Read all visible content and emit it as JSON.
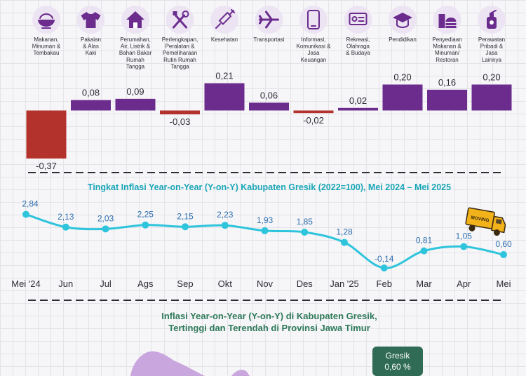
{
  "colors": {
    "purple": "#6b2c8e",
    "red": "#b3322c",
    "teal": "#2ec4dc",
    "title_teal": "#1aa6b8",
    "green_title": "#2f7a5a",
    "text_dark": "#2d2d35",
    "value_blue": "#2f6fb0",
    "icon_purple": "#6b2c8e",
    "icon_bg": "#ece4f2",
    "map_purple": "#c9a6dd",
    "badge_green": "#2f6b55"
  },
  "chart_data": [
    {
      "type": "bar",
      "categories": [
        "Makanan, Minuman & Tembakau",
        "Pakaian & Alas Kaki",
        "Perumahan, Air, Listrik & Bahan Bakar Rumah Tangga",
        "Perlengkapan, Peralatan & Pemeliharaan Rutin Rumah Tangga",
        "Kesehatan",
        "Transportasi",
        "Informasi, Komunikasi & Jasa Keuangan",
        "Rekreasi, Olahraga & Budaya",
        "Pendidikan",
        "Penyediaan Makanan & Minuman/ Restoran",
        "Perawatan Pribadi & Jasa Lainnya"
      ],
      "category_lines": [
        [
          "Makanan,",
          "Minuman &",
          "Tembakau"
        ],
        [
          "Pakaian",
          "& Alas",
          "Kaki"
        ],
        [
          "Perumahan,",
          "Air, Listrik &",
          "Bahan Bakar",
          "Rumah",
          "Tangga"
        ],
        [
          "Perlengkapan,",
          "Peralatan &",
          "Pemeliharaan",
          "Rutin Rumah",
          "Tangga"
        ],
        [
          "Kesehatan"
        ],
        [
          "Transportasi"
        ],
        [
          "Informasi,",
          "Komunikasi &",
          "Jasa",
          "Keuangan"
        ],
        [
          "Rekreasi,",
          "Olahraga",
          "& Budaya"
        ],
        [
          "Pendidikan"
        ],
        [
          "Penyediaan",
          "Makanan &",
          "Minuman/",
          "Restoran"
        ],
        [
          "Perawatan",
          "Pribadi &",
          "Jasa",
          "Lainnya"
        ]
      ],
      "icons": [
        "food-bowl-icon",
        "tshirt-icon",
        "house-icon",
        "tools-icon",
        "syringe-icon",
        "airplane-icon",
        "smartphone-icon",
        "ticket-icon",
        "graduation-cap-icon",
        "fastfood-icon",
        "lotion-bottle-icon"
      ],
      "values": [
        -0.37,
        0.08,
        0.09,
        -0.03,
        0.21,
        0.06,
        -0.02,
        0.02,
        0.2,
        0.16,
        0.2
      ],
      "labels": [
        "-0,37",
        "0,08",
        "0,09",
        "-0,03",
        "0,21",
        "0,06",
        "-0,02",
        "0,02",
        "0,20",
        "0,16",
        "0,20"
      ]
    },
    {
      "type": "line",
      "title": "Tingkat Inflasi Year-on-Year (Y-on-Y) Kabupaten Gresik (2022=100), Mei 2024 – Mei 2025",
      "x": [
        "Mei '24",
        "Jun",
        "Jul",
        "Ags",
        "Sep",
        "Okt",
        "Nov",
        "Des",
        "Jan '25",
        "Feb",
        "Mar",
        "Apr",
        "Mei"
      ],
      "y": [
        2.84,
        2.13,
        2.03,
        2.25,
        2.15,
        2.23,
        1.93,
        1.85,
        1.28,
        -0.14,
        0.81,
        1.05,
        0.6
      ],
      "labels": [
        "2,84",
        "2,13",
        "2,03",
        "2,25",
        "2,15",
        "2,23",
        "1,93",
        "1,85",
        "1,28",
        "-0,14",
        "0,81",
        "1,05",
        "0,60"
      ],
      "truck_label": "MOVING"
    }
  ],
  "map_section": {
    "title_line1": "Inflasi Year-on-Year (Y-on-Y) di Kabupaten Gresik,",
    "title_line2": "Tertinggi dan Terendah di Provinsi Jawa Timur",
    "badge_name": "Gresik",
    "badge_value": "0,60 %"
  }
}
